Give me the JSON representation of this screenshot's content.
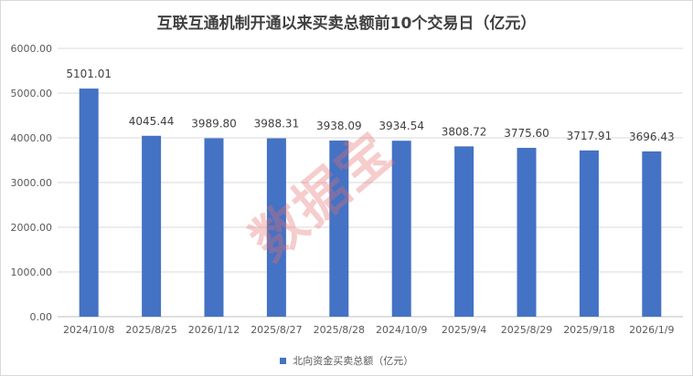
{
  "chart_data": {
    "type": "bar",
    "title": "互联互通机制开通以来买卖总额前10个交易日（亿元）",
    "categories": [
      "2024/10/8",
      "2025/8/25",
      "2026/1/12",
      "2025/8/27",
      "2025/8/28",
      "2024/10/9",
      "2025/9/4",
      "2025/8/29",
      "2025/9/18",
      "2026/1/9"
    ],
    "series": [
      {
        "name": "北向资金买卖总额（亿元）",
        "values": [
          5101.01,
          4045.44,
          3989.8,
          3988.31,
          3938.09,
          3934.54,
          3808.72,
          3775.6,
          3717.91,
          3696.43
        ],
        "labels": [
          "5101.01",
          "4045.44",
          "3989.80",
          "3988.31",
          "3938.09",
          "3934.54",
          "3808.72",
          "3775.60",
          "3717.91",
          "3696.43"
        ]
      }
    ],
    "ylim": [
      0,
      6000
    ],
    "yticks": [
      "0.00",
      "1000.00",
      "2000.00",
      "3000.00",
      "4000.00",
      "5000.00",
      "6000.00"
    ],
    "grid": true,
    "legend_position": "bottom",
    "bar_color": "#4472c4"
  },
  "watermark": "数据宝"
}
